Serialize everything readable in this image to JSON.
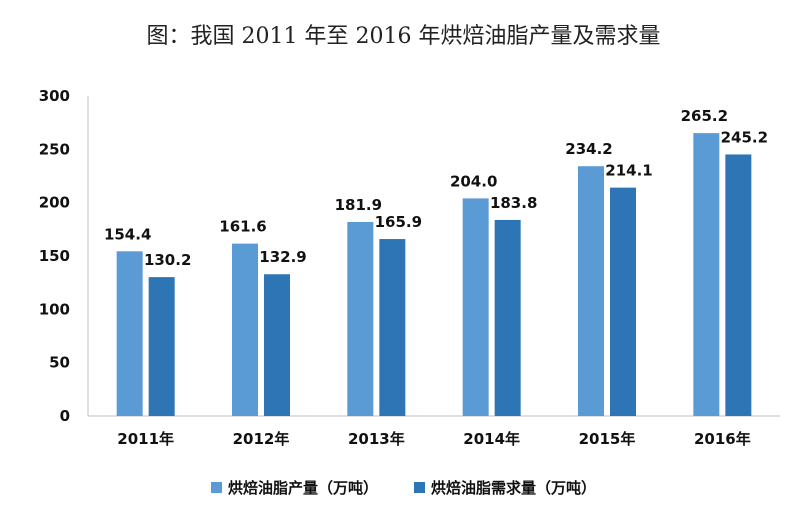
{
  "chart_data": {
    "type": "bar",
    "title": "图：我国 2011 年至 2016 年烘焙油脂产量及需求量",
    "xlabel": "",
    "ylabel": "",
    "categories": [
      "2011年",
      "2012年",
      "2013年",
      "2014年",
      "2015年",
      "2016年"
    ],
    "ylim": [
      0,
      300
    ],
    "yticks": [
      0,
      50,
      100,
      150,
      200,
      250,
      300
    ],
    "grid": false,
    "legend_position": "bottom",
    "series": [
      {
        "name": "烘焙油脂产量（万吨）",
        "color": "#5b9bd5",
        "values": [
          154.4,
          161.6,
          181.9,
          204.0,
          234.2,
          265.2
        ],
        "labels": [
          "154.4",
          "161.6",
          "181.9",
          "204.0",
          "234.2",
          "265.2"
        ]
      },
      {
        "name": "烘焙油脂需求量（万吨）",
        "color": "#2e75b6",
        "values": [
          130.2,
          132.9,
          165.9,
          183.8,
          214.1,
          245.2
        ],
        "labels": [
          "130.2",
          "132.9",
          "165.9",
          "183.8",
          "214.1",
          "245.2"
        ]
      }
    ]
  }
}
